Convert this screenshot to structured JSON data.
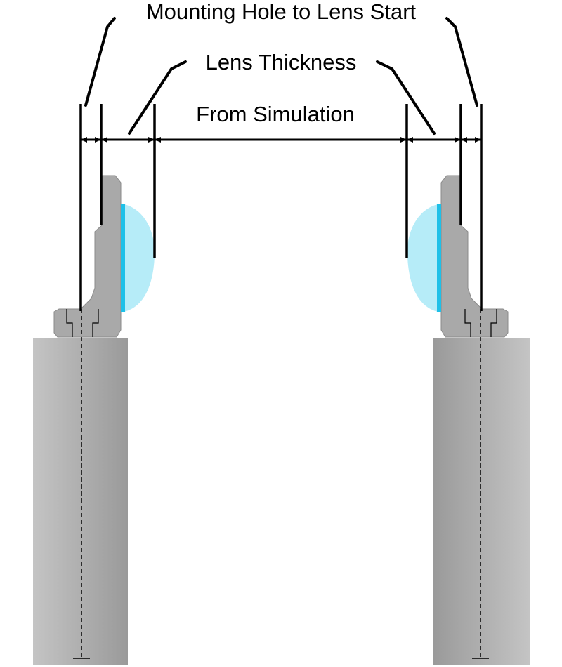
{
  "labels": {
    "mounting_hole_to_lens_start": "Mounting Hole to Lens Start",
    "lens_thickness": "Lens Thickness",
    "from_simulation": "From Simulation"
  },
  "colors": {
    "background": "#ffffff",
    "post_dark": "#9a9a9a",
    "post_light": "#c4c4c4",
    "mount_fill": "#a9a9a9",
    "mount_stroke": "#8a8a8a",
    "lens_fill": "#b6ecf8",
    "lens_flat_face": "#1fc0e8",
    "line": "#000000"
  },
  "icons": {
    "arrowheads": "dimension-arrow",
    "axis": "dashed-centerline"
  }
}
